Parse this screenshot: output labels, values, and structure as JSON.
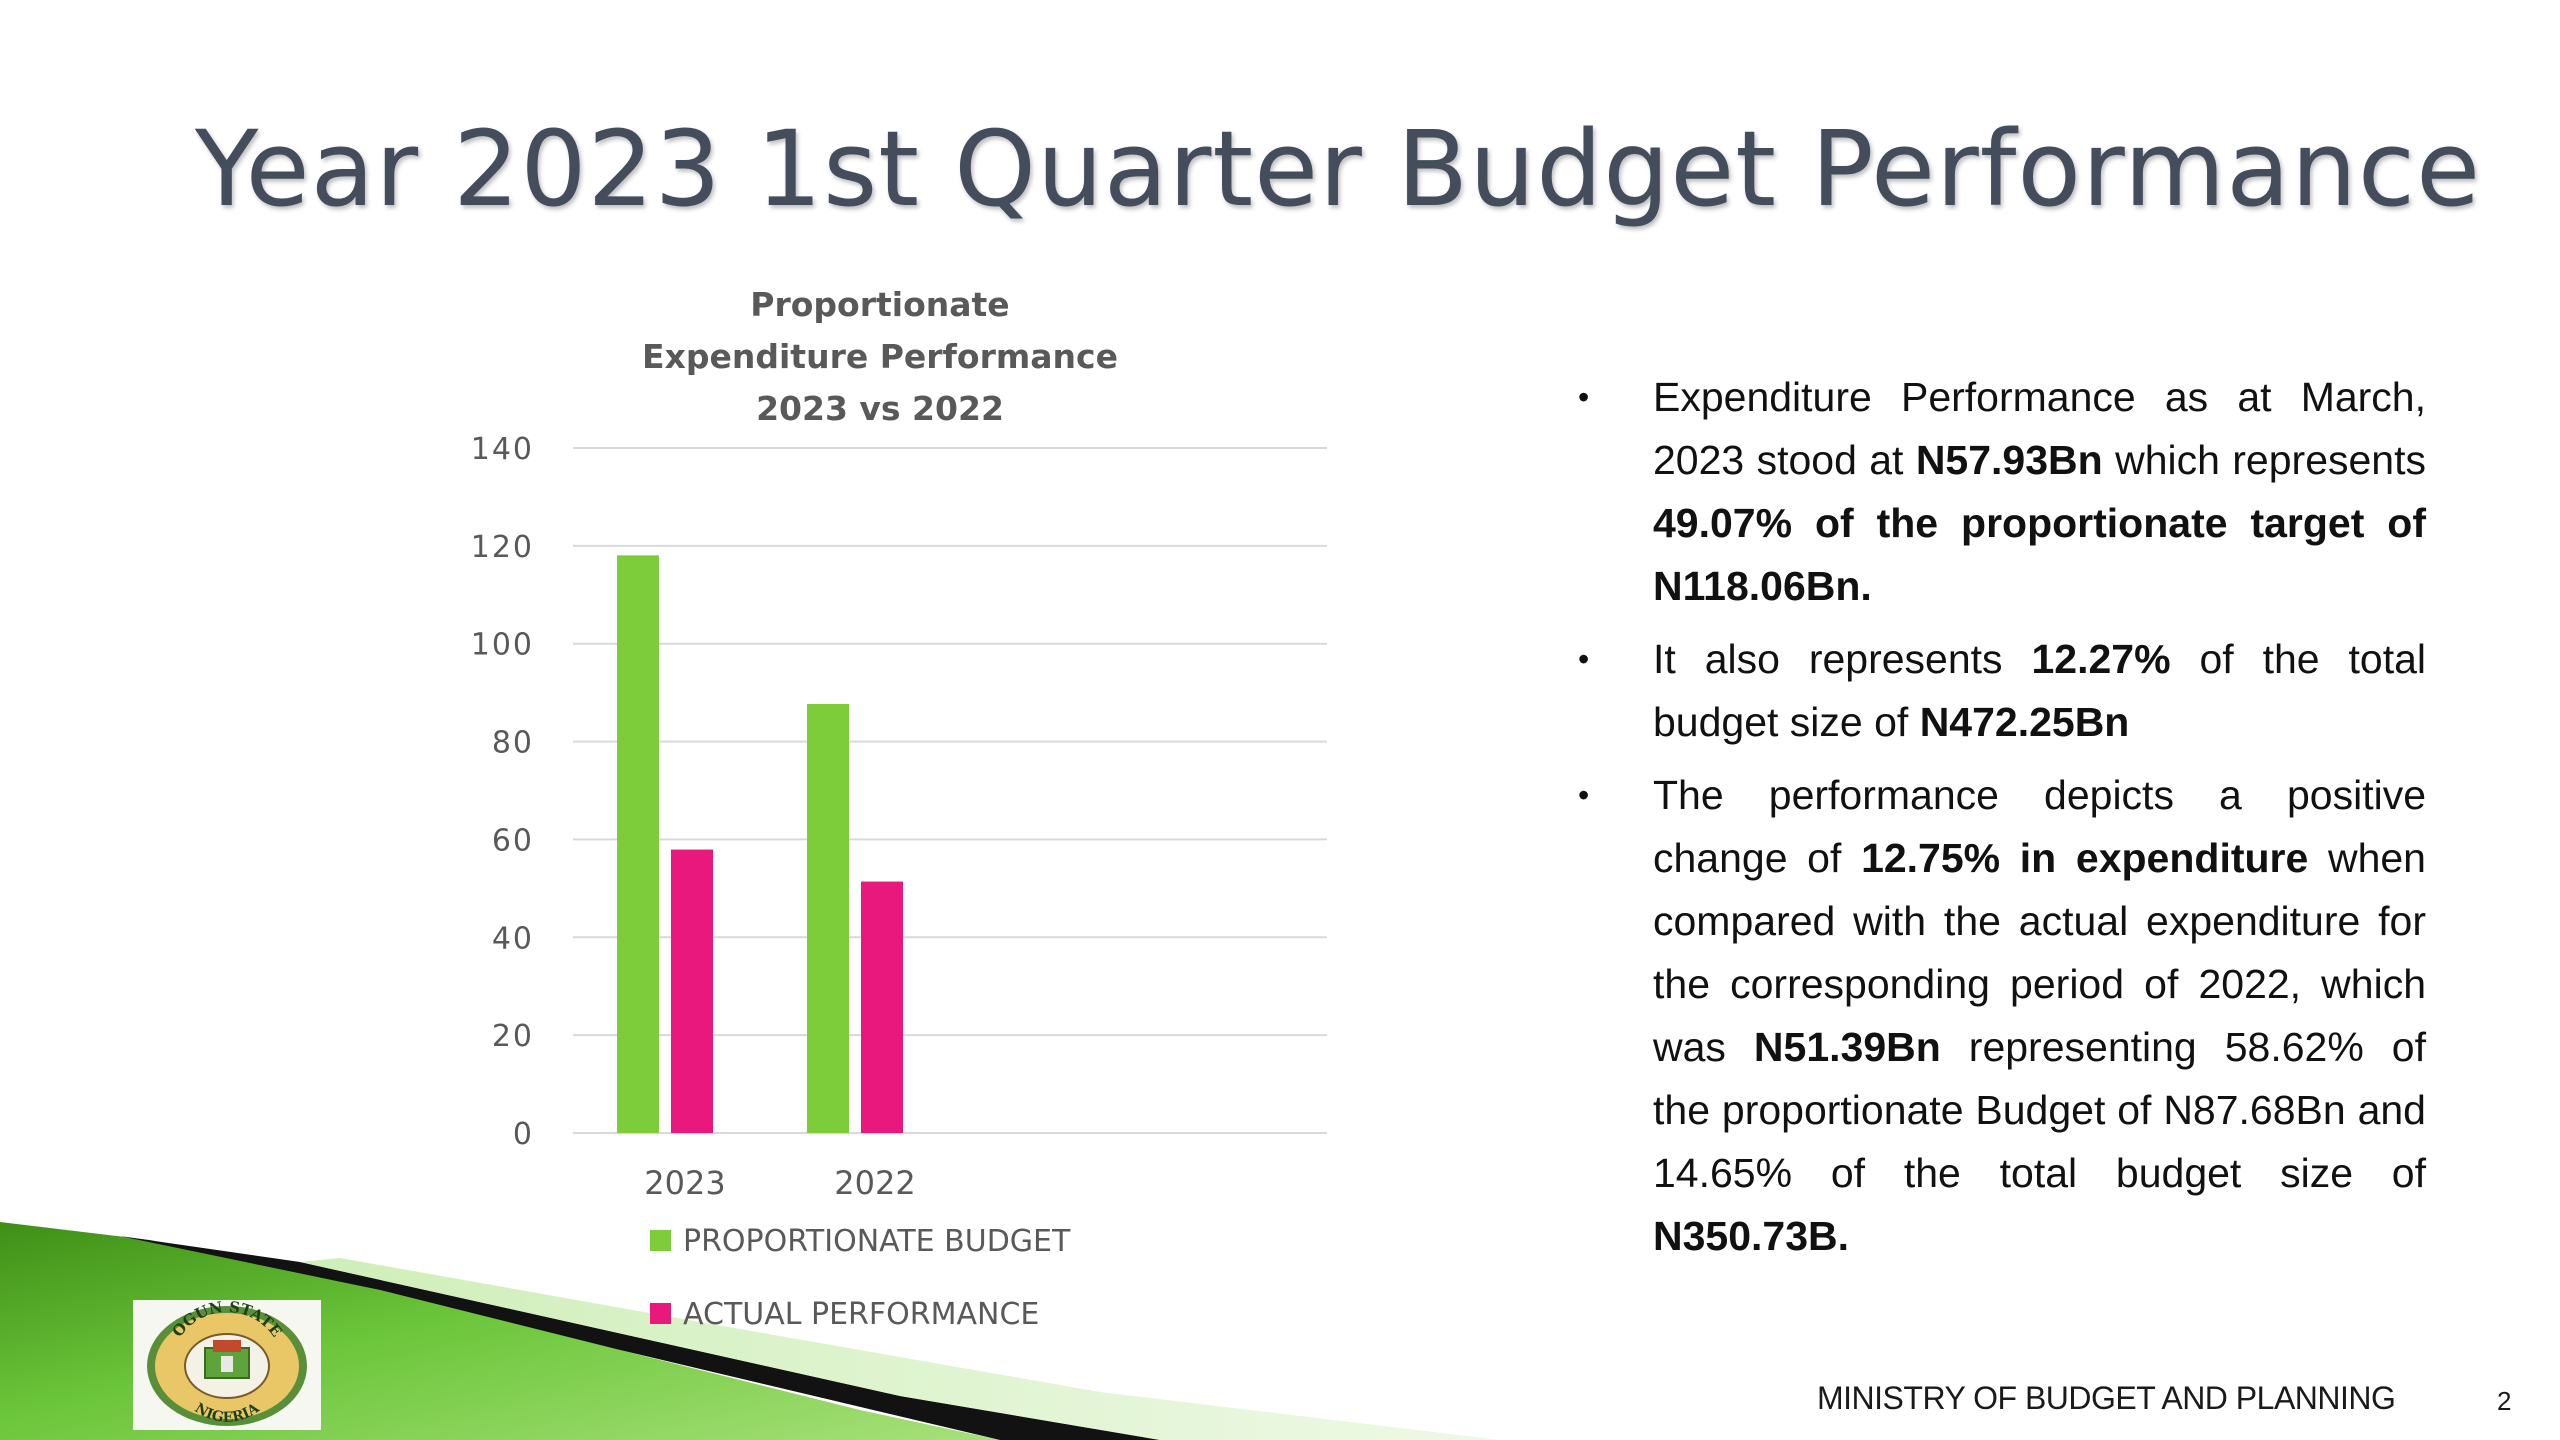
{
  "slide": {
    "title": "Year 2023 1st Quarter Budget Performance",
    "footer": "MINISTRY OF BUDGET AND PLANNING",
    "page_number": "2",
    "logo_text": {
      "top": "OGUN STATE",
      "bottom": "NIGERIA"
    }
  },
  "bullets": {
    "b1": {
      "t1": "Expenditure Performance as at March, 2023 stood at ",
      "t2": "N57.93Bn",
      "t3": " which represents ",
      "t4": "49.07% of the proportionate target of N118.06Bn."
    },
    "b2": {
      "t1": "It also represents ",
      "t2": "12.27%",
      "t3": " of the total budget size of ",
      "t4": "N472.25Bn"
    },
    "b3": {
      "t1": "The performance depicts a positive change of ",
      "t2": "12.75%  in expenditure",
      "t3": " when compared with the actual expenditure for the corresponding period of 2022, which was ",
      "t4": "N51.39Bn",
      "t5": " representing 58.62% of the proportionate Budget of N87.68Bn and 14.65% of the total budget size of ",
      "t6": "N350.73B."
    }
  },
  "chart_data": {
    "type": "bar",
    "title": [
      "Proportionate",
      "Expenditure Performance",
      "2023 vs 2022"
    ],
    "categories": [
      "2023",
      "2022"
    ],
    "series": [
      {
        "name": "PROPORTIONATE BUDGET",
        "color": "#7dcd3a",
        "values": [
          118.06,
          87.68
        ]
      },
      {
        "name": "ACTUAL PERFORMANCE",
        "color": "#e8187c",
        "values": [
          57.93,
          51.39
        ]
      }
    ],
    "yticks": [
      "0",
      "20",
      "40",
      "60",
      "80",
      "100",
      "120",
      "140"
    ],
    "ylim": [
      0,
      140
    ],
    "grid": true,
    "legend": "bottom",
    "xlabel": "",
    "ylabel": ""
  }
}
